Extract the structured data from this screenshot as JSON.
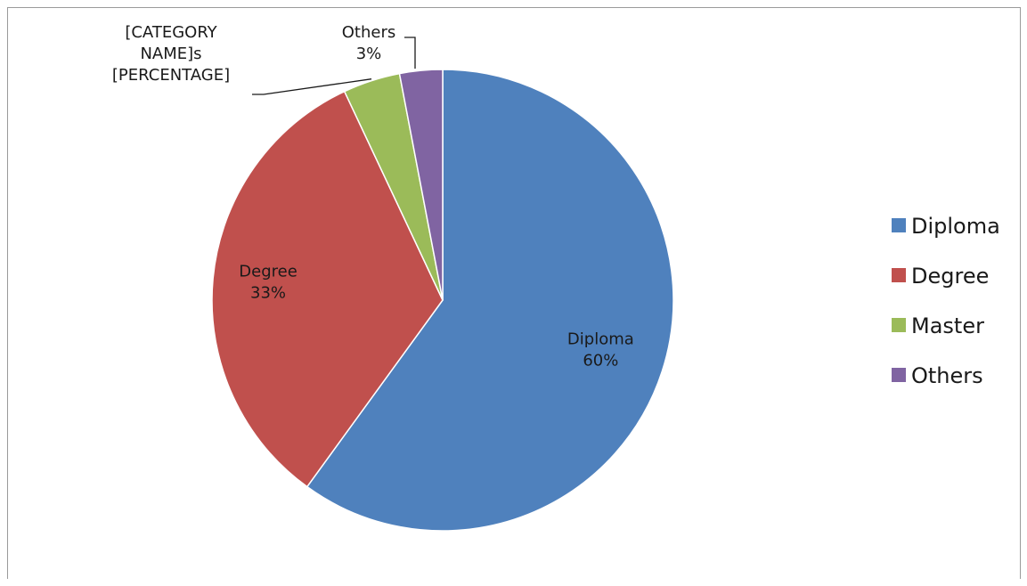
{
  "chart_data": {
    "type": "pie",
    "categories": [
      "Diploma",
      "Degree",
      "Master",
      "Others"
    ],
    "values": [
      60,
      33,
      4,
      3
    ],
    "colors": [
      "#4F81BD",
      "#C0504D",
      "#9BBB59",
      "#8064A2"
    ],
    "data_labels": [
      {
        "lines": [
          "Diploma",
          "60%"
        ]
      },
      {
        "lines": [
          "Degree",
          "33%"
        ]
      },
      {
        "lines": [
          "[CATEGORY",
          "NAME]s",
          "[PERCENTAGE]"
        ]
      },
      {
        "lines": [
          "Others",
          "3%"
        ]
      }
    ],
    "legend": {
      "placement": "right",
      "entries": [
        "Diploma",
        "Degree",
        "Master",
        "Others"
      ]
    }
  }
}
